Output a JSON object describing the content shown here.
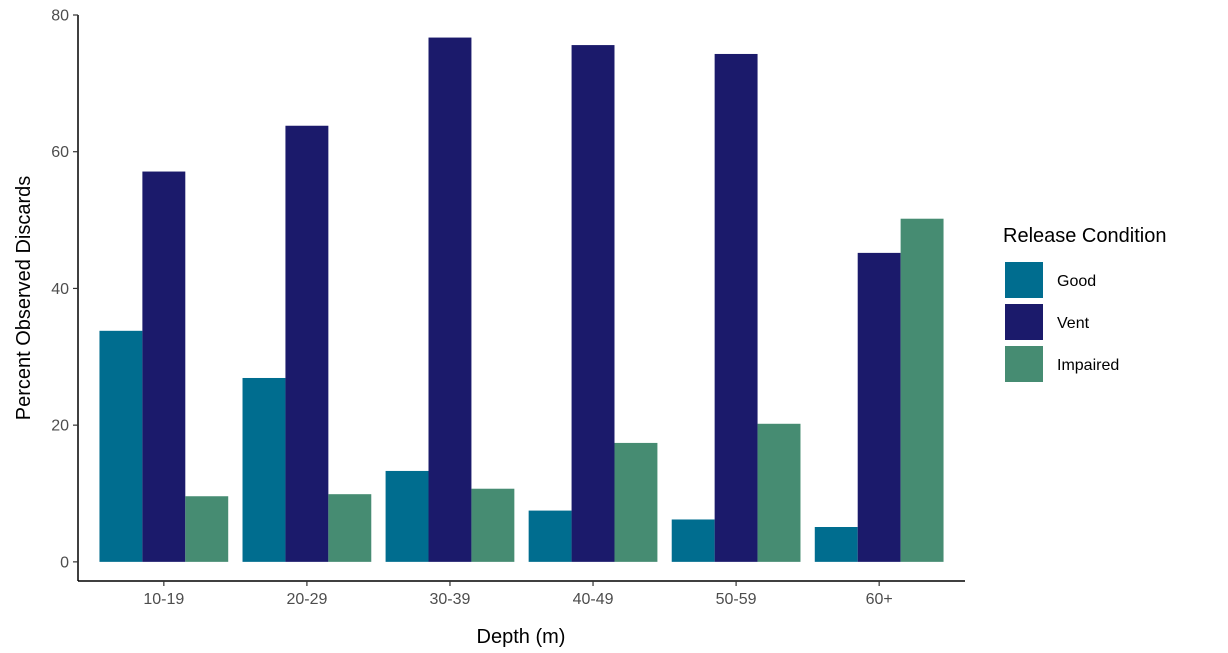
{
  "chart_data": {
    "type": "bar",
    "title": "",
    "xlabel": "Depth (m)",
    "ylabel": "Percent Observed Discards",
    "ylim": [
      -2.8,
      80
    ],
    "yticks": [
      0,
      20,
      40,
      60,
      80
    ],
    "grid": false,
    "legend_position": "right",
    "legend_title": "Release Condition",
    "categories": [
      "10-19",
      "20-29",
      "30-39",
      "40-49",
      "50-59",
      "60+"
    ],
    "series": [
      {
        "name": "Good",
        "color": "#006D8F",
        "values": [
          33.8,
          26.9,
          13.3,
          7.5,
          6.2,
          5.1
        ]
      },
      {
        "name": "Vent",
        "color": "#1B1A6B",
        "values": [
          57.1,
          63.8,
          76.7,
          75.6,
          74.3,
          45.2
        ]
      },
      {
        "name": "Impaired",
        "color": "#468C72",
        "values": [
          9.6,
          9.9,
          10.7,
          17.4,
          20.2,
          50.2
        ]
      }
    ]
  }
}
